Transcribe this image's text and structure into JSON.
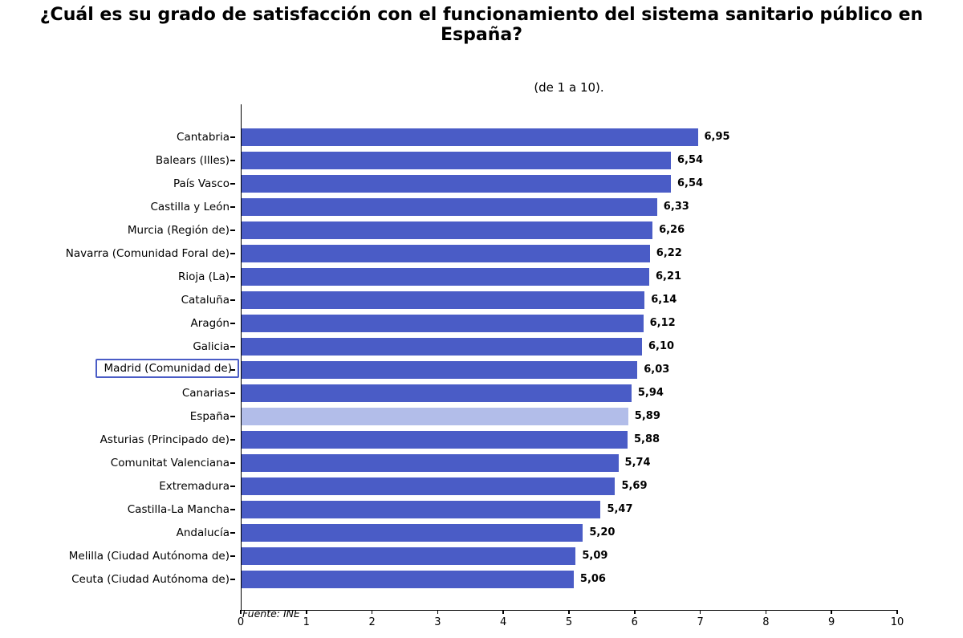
{
  "title": "¿Cuál es su grado de satisfacción con el funcionamiento del sistema sanitario público en España?",
  "subtitle": "(de 1 a 10).",
  "source": "Fuente: INE",
  "chart_data": {
    "type": "bar",
    "orientation": "horizontal",
    "title": "¿Cuál es su grado de satisfacción con el funcionamiento del sistema sanitario público en España?",
    "subtitle": "(de 1 a 10).",
    "categories": [
      "Cantabria",
      "Balears (Illes)",
      "País Vasco",
      "Castilla y León",
      "Murcia (Región de)",
      "Navarra (Comunidad Foral de)",
      "Rioja (La)",
      "Cataluña",
      "Aragón",
      "Galicia",
      "Madrid (Comunidad de)",
      "Canarias",
      "España",
      "Asturias (Principado de)",
      "Comunitat Valenciana",
      "Extremadura",
      "Castilla-La Mancha",
      "Andalucía",
      "Melilla (Ciudad Autónoma de)",
      "Ceuta (Ciudad Autónoma de)"
    ],
    "values": [
      6.95,
      6.54,
      6.54,
      6.33,
      6.26,
      6.22,
      6.21,
      6.14,
      6.12,
      6.1,
      6.03,
      5.94,
      5.89,
      5.88,
      5.74,
      5.69,
      5.47,
      5.2,
      5.09,
      5.06
    ],
    "value_labels": [
      "6,95",
      "6,54",
      "6,54",
      "6,33",
      "6,26",
      "6,22",
      "6,21",
      "6,14",
      "6,12",
      "6,10",
      "6,03",
      "5,94",
      "5,89",
      "5,88",
      "5,74",
      "5,69",
      "5,47",
      "5,20",
      "5,09",
      "5,06"
    ],
    "highlighted_category": "España",
    "boxed_category": "Madrid (Comunidad de)",
    "xlim": [
      0,
      10
    ],
    "xticks": [
      0,
      1,
      2,
      3,
      4,
      5,
      6,
      7,
      8,
      9,
      10
    ],
    "bar_color": "#4a5cc6",
    "highlight_color": "#b2bde9",
    "grid": false,
    "legend": null,
    "source": "Fuente: INE"
  }
}
